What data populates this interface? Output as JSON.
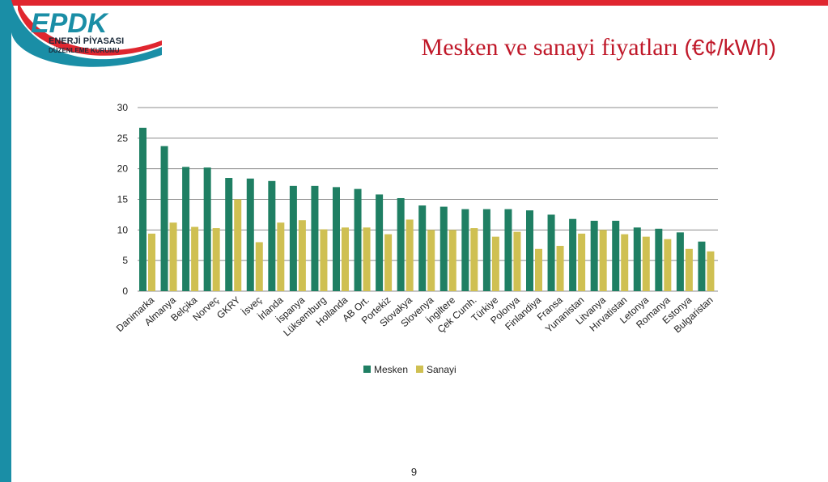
{
  "header": {
    "logo_text": "EPDK",
    "logo_line1": "ENERJİ PİYASASI",
    "logo_line2": "DÜZENLEME KURUMU",
    "title_main": "Mesken ve sanayi fiyatları",
    "title_unit": "(€¢/kWh)"
  },
  "colors": {
    "mesken": "#1f7f63",
    "sanayi": "#cfc052",
    "title": "#c0192a",
    "accent_bar": "#e0262f",
    "side_bar": "#1a8ea6"
  },
  "chart_data": {
    "type": "bar",
    "categories": [
      "Danimarka",
      "Almanya",
      "Belçika",
      "Norveç",
      "GKRY",
      "İsveç",
      "İrlanda",
      "İspanya",
      "Lüksemburg",
      "Hollanda",
      "AB Ort.",
      "Portekiz",
      "Slovakya",
      "Slovenya",
      "İngiltere",
      "Çek Cumh.",
      "Türkiye",
      "Polonya",
      "Finlandiya",
      "Fransa",
      "Yunanistan",
      "Litvanya",
      "Hırvatistan",
      "Letonya",
      "Romanya",
      "Estonya",
      "Bulgaristan"
    ],
    "series": [
      {
        "name": "Mesken",
        "values": [
          26.7,
          23.7,
          20.3,
          20.2,
          18.5,
          18.4,
          18.0,
          17.2,
          17.2,
          17.0,
          16.7,
          15.8,
          15.2,
          14.0,
          13.8,
          13.4,
          13.4,
          13.4,
          13.2,
          12.5,
          11.8,
          11.5,
          11.5,
          10.4,
          10.2,
          9.6,
          8.1
        ]
      },
      {
        "name": "Sanayi",
        "values": [
          9.4,
          11.2,
          10.5,
          10.3,
          15.0,
          8.0,
          11.2,
          11.6,
          10.1,
          10.4,
          10.4,
          9.3,
          11.7,
          10.0,
          10.0,
          10.3,
          8.9,
          9.7,
          6.9,
          7.4,
          9.4,
          10.0,
          9.3,
          8.9,
          8.5,
          6.9,
          6.5
        ]
      }
    ],
    "ylim": [
      0,
      30
    ],
    "yticks": [
      0,
      5,
      10,
      15,
      20,
      25,
      30
    ],
    "grid": true,
    "legend_position": "bottom"
  },
  "footer": {
    "page_number": "9"
  }
}
